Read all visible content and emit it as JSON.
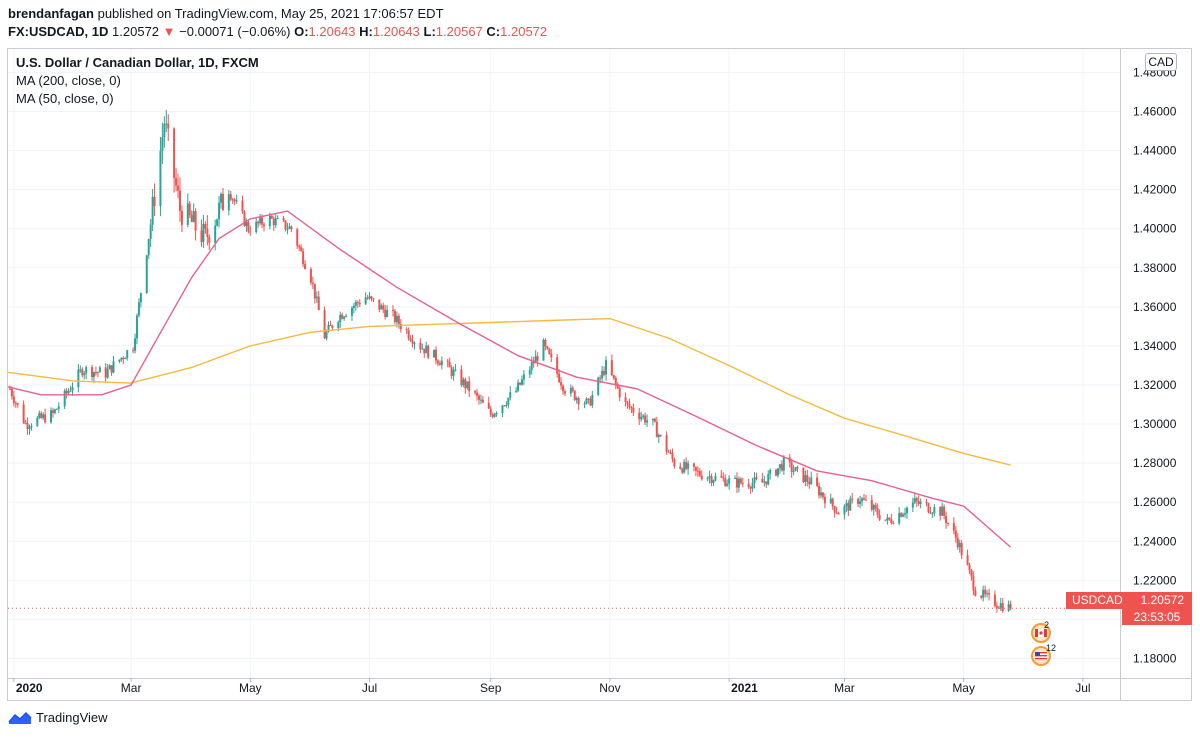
{
  "header": {
    "author": "brendanfagan",
    "published": "published on TradingView.com, May 25, 2021 17:06:57 EDT",
    "symbol": "FX:USDCAD, 1D",
    "last": "1.20572",
    "change": "−0.00071 (−0.06%)",
    "o_label": "O:",
    "o_value": "1.20643",
    "h_label": "H:",
    "h_value": "1.20643",
    "l_label": "L:",
    "l_value": "1.20567",
    "c_label": "C:",
    "c_value": "1.20572"
  },
  "legend": {
    "title": "U.S. Dollar / Canadian Dollar, 1D, FXCM",
    "ma200": "MA (200, close, 0)",
    "ma50": "MA (50, close, 0)"
  },
  "currency": "CAD",
  "price_tag": {
    "symbol": "USDCAD",
    "value": "1.20572",
    "countdown": "23:53:05"
  },
  "events": {
    "ca_count": "2",
    "us_count": "12"
  },
  "footer": {
    "brand": "TradingView"
  },
  "colors": {
    "up": "#26a69a",
    "down": "#ef5350",
    "ma200": "#f7b93e",
    "ma50": "#e8608c"
  },
  "chart_data": {
    "type": "candlestick",
    "title": "U.S. Dollar / Canadian Dollar, 1D, FXCM",
    "ylim": [
      1.17,
      1.492
    ],
    "y_ticks": [
      1.18,
      1.2,
      1.22,
      1.24,
      1.26,
      1.28,
      1.3,
      1.32,
      1.34,
      1.36,
      1.38,
      1.4,
      1.42,
      1.44,
      1.46,
      1.48
    ],
    "y_tick_labels": [
      "1.18000",
      "1.20000",
      "1.22000",
      "1.24000",
      "1.26000",
      "1.28000",
      "1.30000",
      "1.32000",
      "1.34000",
      "1.36000",
      "1.38000",
      "1.40000",
      "1.42000",
      "1.44000",
      "1.46000",
      "1.48000"
    ],
    "x_start": "2019-12-29",
    "x_end": "2021-07-20",
    "x_ticks": [
      {
        "label": "2020",
        "date": "2020-01-01"
      },
      {
        "label": "Mar",
        "date": "2020-03-01"
      },
      {
        "label": "May",
        "date": "2020-05-01"
      },
      {
        "label": "Jul",
        "date": "2020-07-01"
      },
      {
        "label": "Sep",
        "date": "2020-09-01"
      },
      {
        "label": "Nov",
        "date": "2020-11-01"
      },
      {
        "label": "2021",
        "date": "2021-01-01"
      },
      {
        "label": "Mar",
        "date": "2021-03-01"
      },
      {
        "label": "May",
        "date": "2021-05-01"
      },
      {
        "label": "Jul",
        "date": "2021-07-01"
      }
    ],
    "close_path": [
      [
        "2019-12-30",
        1.318
      ],
      [
        "2020-01-07",
        1.3
      ],
      [
        "2020-01-21",
        1.305
      ],
      [
        "2020-02-05",
        1.328
      ],
      [
        "2020-02-17",
        1.326
      ],
      [
        "2020-03-02",
        1.34
      ],
      [
        "2020-03-12",
        1.41
      ],
      [
        "2020-03-18",
        1.455
      ],
      [
        "2020-03-26",
        1.41
      ],
      [
        "2020-04-08",
        1.395
      ],
      [
        "2020-04-20",
        1.42
      ],
      [
        "2020-04-30",
        1.4
      ],
      [
        "2020-05-11",
        1.405
      ],
      [
        "2020-05-22",
        1.4
      ],
      [
        "2020-06-01",
        1.375
      ],
      [
        "2020-06-08",
        1.345
      ],
      [
        "2020-06-15",
        1.355
      ],
      [
        "2020-06-29",
        1.365
      ],
      [
        "2020-07-13",
        1.355
      ],
      [
        "2020-07-27",
        1.34
      ],
      [
        "2020-08-07",
        1.332
      ],
      [
        "2020-08-21",
        1.318
      ],
      [
        "2020-09-01",
        1.305
      ],
      [
        "2020-09-14",
        1.317
      ],
      [
        "2020-09-28",
        1.34
      ],
      [
        "2020-10-09",
        1.318
      ],
      [
        "2020-10-21",
        1.31
      ],
      [
        "2020-10-30",
        1.33
      ],
      [
        "2020-11-09",
        1.31
      ],
      [
        "2020-11-23",
        1.3
      ],
      [
        "2020-12-04",
        1.28
      ],
      [
        "2020-12-15",
        1.275
      ],
      [
        "2021-01-04",
        1.27
      ],
      [
        "2021-01-18",
        1.27
      ],
      [
        "2021-01-29",
        1.28
      ],
      [
        "2021-02-12",
        1.27
      ],
      [
        "2021-02-26",
        1.255
      ],
      [
        "2021-03-09",
        1.262
      ],
      [
        "2021-03-23",
        1.25
      ],
      [
        "2021-04-06",
        1.26
      ],
      [
        "2021-04-20",
        1.255
      ],
      [
        "2021-04-28",
        1.24
      ],
      [
        "2021-05-07",
        1.215
      ],
      [
        "2021-05-14",
        1.21
      ],
      [
        "2021-05-25",
        1.2057
      ]
    ],
    "series": [
      {
        "name": "MA (200, close, 0)",
        "color": "#f7b93e",
        "points": [
          [
            "2019-12-29",
            1.3265
          ],
          [
            "2020-02-01",
            1.322
          ],
          [
            "2020-03-01",
            1.321
          ],
          [
            "2020-04-01",
            1.329
          ],
          [
            "2020-05-01",
            1.34
          ],
          [
            "2020-06-01",
            1.347
          ],
          [
            "2020-07-01",
            1.35
          ],
          [
            "2020-08-01",
            1.351
          ],
          [
            "2020-09-01",
            1.352
          ],
          [
            "2020-10-01",
            1.353
          ],
          [
            "2020-11-01",
            1.354
          ],
          [
            "2020-12-01",
            1.344
          ],
          [
            "2021-01-01",
            1.33
          ],
          [
            "2021-02-01",
            1.315
          ],
          [
            "2021-03-01",
            1.303
          ],
          [
            "2021-04-01",
            1.294
          ],
          [
            "2021-05-01",
            1.285
          ],
          [
            "2021-05-25",
            1.279
          ]
        ]
      },
      {
        "name": "MA (50, close, 0)",
        "color": "#e8608c",
        "points": [
          [
            "2019-12-29",
            1.319
          ],
          [
            "2020-01-15",
            1.315
          ],
          [
            "2020-02-15",
            1.315
          ],
          [
            "2020-03-01",
            1.32
          ],
          [
            "2020-03-15",
            1.345
          ],
          [
            "2020-04-01",
            1.375
          ],
          [
            "2020-04-15",
            1.395
          ],
          [
            "2020-05-01",
            1.405
          ],
          [
            "2020-05-20",
            1.409
          ],
          [
            "2020-06-15",
            1.39
          ],
          [
            "2020-07-15",
            1.37
          ],
          [
            "2020-08-15",
            1.352
          ],
          [
            "2020-09-15",
            1.335
          ],
          [
            "2020-10-15",
            1.324
          ],
          [
            "2020-11-15",
            1.318
          ],
          [
            "2020-12-15",
            1.304
          ],
          [
            "2021-01-15",
            1.289
          ],
          [
            "2021-02-15",
            1.276
          ],
          [
            "2021-03-15",
            1.271
          ],
          [
            "2021-04-15",
            1.262
          ],
          [
            "2021-05-01",
            1.258
          ],
          [
            "2021-05-25",
            1.237
          ]
        ]
      }
    ]
  }
}
